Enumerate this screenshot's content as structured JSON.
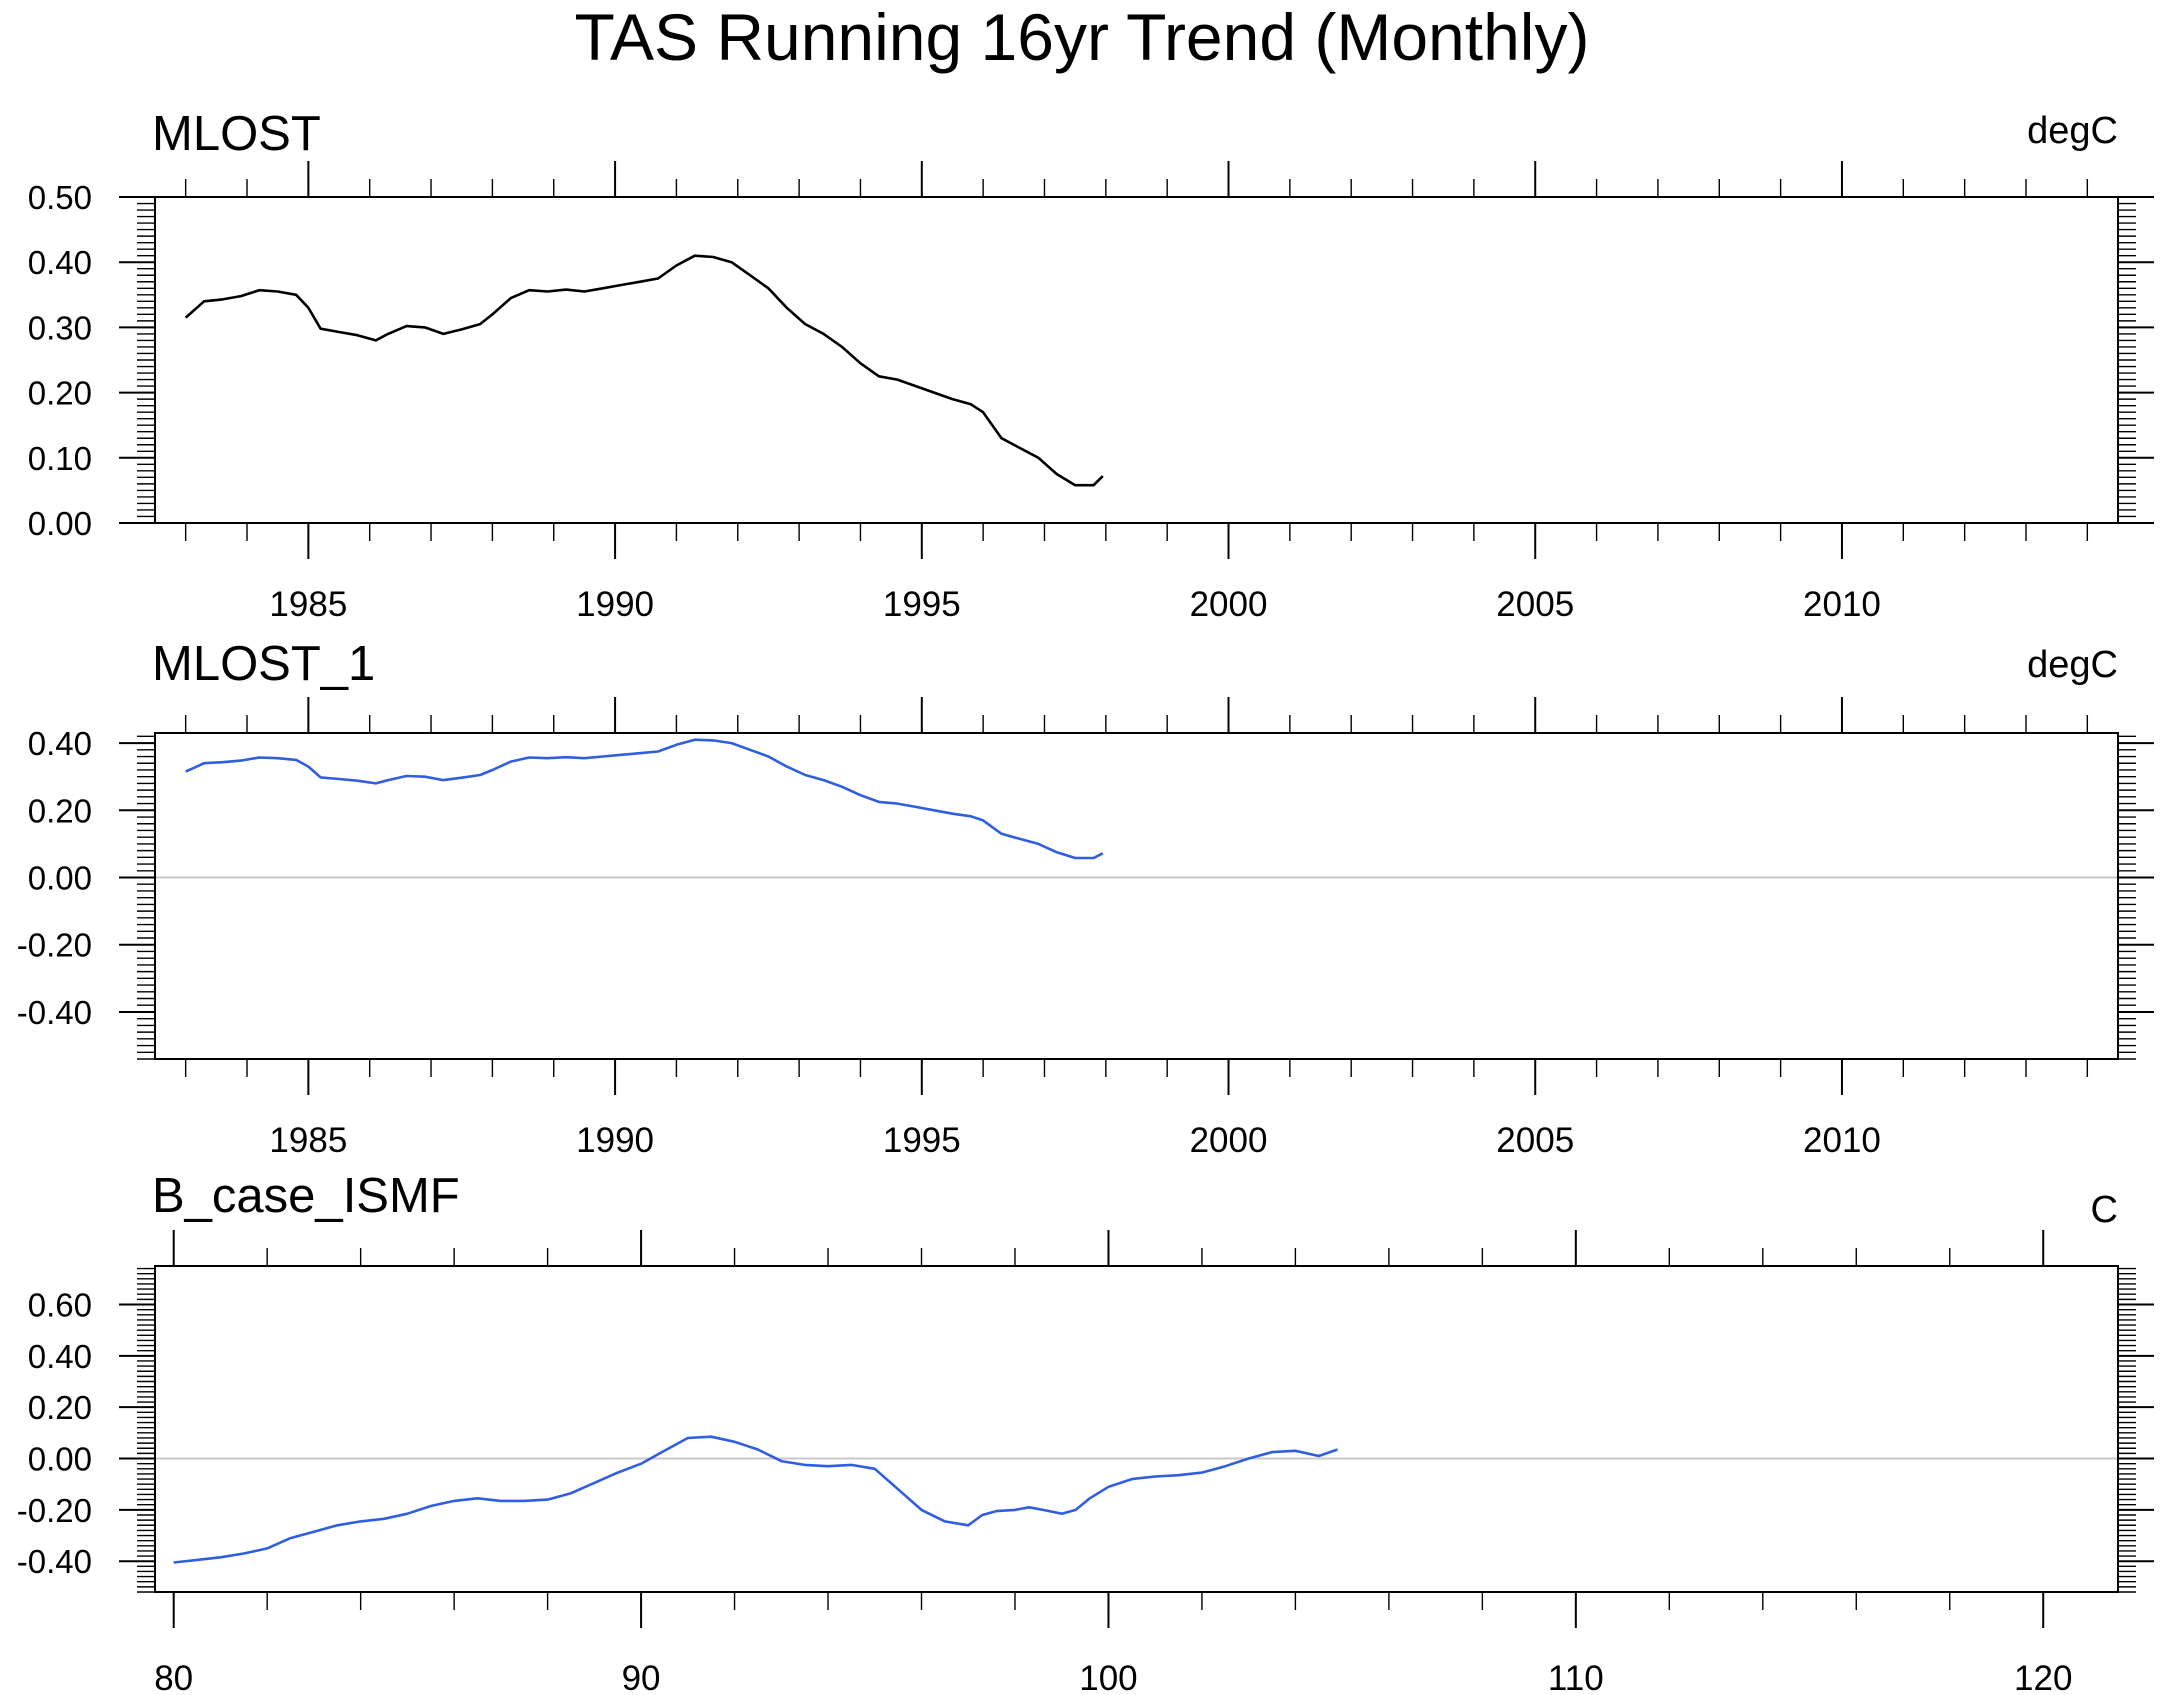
{
  "title": "TAS Running 16yr Trend (Monthly)",
  "colors": {
    "black": "#000000",
    "blue": "#2f5fe0",
    "zero_line": "#c8c8c8"
  },
  "chart_data": [
    {
      "type": "line",
      "title": "MLOST",
      "unit": "degC",
      "xlim": [
        1982.5,
        2014.5
      ],
      "ylim": [
        0.0,
        0.5
      ],
      "xticks": [
        1985,
        1990,
        1995,
        2000,
        2005,
        2010
      ],
      "xtick_labels": [
        "1985",
        "1990",
        "1995",
        "2000",
        "2005",
        "2010"
      ],
      "yticks": [
        0.0,
        0.1,
        0.2,
        0.3,
        0.4,
        0.5
      ],
      "ytick_labels": [
        "0.00",
        "0.10",
        "0.20",
        "0.30",
        "0.40",
        "0.50"
      ],
      "zero_line": false,
      "color": "#000000",
      "series": [
        {
          "x": [
            1983.0,
            1983.3,
            1983.6,
            1983.9,
            1984.2,
            1984.5,
            1984.8,
            1985.0,
            1985.2,
            1985.5,
            1985.8,
            1986.1,
            1986.3,
            1986.6,
            1986.9,
            1987.2,
            1987.5,
            1987.8,
            1988.0,
            1988.3,
            1988.6,
            1988.9,
            1989.2,
            1989.5,
            1989.8,
            1990.1,
            1990.4,
            1990.7,
            1991.0,
            1991.3,
            1991.6,
            1991.9,
            1992.2,
            1992.5,
            1992.8,
            1993.1,
            1993.4,
            1993.7,
            1994.0,
            1994.3,
            1994.6,
            1994.9,
            1995.2,
            1995.5,
            1995.8,
            1996.0,
            1996.3,
            1996.6,
            1996.9,
            1997.2,
            1997.5,
            1997.8,
            1997.95
          ],
          "y": [
            0.315,
            0.34,
            0.343,
            0.348,
            0.357,
            0.355,
            0.35,
            0.33,
            0.298,
            0.293,
            0.288,
            0.28,
            0.29,
            0.302,
            0.3,
            0.29,
            0.297,
            0.305,
            0.32,
            0.345,
            0.357,
            0.355,
            0.358,
            0.355,
            0.36,
            0.365,
            0.37,
            0.375,
            0.395,
            0.41,
            0.408,
            0.4,
            0.38,
            0.36,
            0.33,
            0.305,
            0.29,
            0.27,
            0.245,
            0.225,
            0.22,
            0.21,
            0.2,
            0.19,
            0.182,
            0.17,
            0.13,
            0.115,
            0.1,
            0.075,
            0.058,
            0.058,
            0.072
          ]
        }
      ]
    },
    {
      "type": "line",
      "title": "MLOST_1",
      "unit": "degC",
      "xlim": [
        1982.5,
        2014.5
      ],
      "ylim": [
        -0.54,
        0.43
      ],
      "xticks": [
        1985,
        1990,
        1995,
        2000,
        2005,
        2010
      ],
      "xtick_labels": [
        "1985",
        "1990",
        "1995",
        "2000",
        "2005",
        "2010"
      ],
      "yticks": [
        -0.4,
        -0.2,
        0.0,
        0.2,
        0.4
      ],
      "ytick_labels": [
        "-0.40",
        "-0.20",
        "0.00",
        "0.20",
        "0.40"
      ],
      "zero_line": true,
      "color": "#2f5fe0",
      "series": [
        {
          "x": [
            1983.0,
            1983.3,
            1983.6,
            1983.9,
            1984.2,
            1984.5,
            1984.8,
            1985.0,
            1985.2,
            1985.5,
            1985.8,
            1986.1,
            1986.3,
            1986.6,
            1986.9,
            1987.2,
            1987.5,
            1987.8,
            1988.0,
            1988.3,
            1988.6,
            1988.9,
            1989.2,
            1989.5,
            1989.8,
            1990.1,
            1990.4,
            1990.7,
            1991.0,
            1991.3,
            1991.6,
            1991.9,
            1992.2,
            1992.5,
            1992.8,
            1993.1,
            1993.4,
            1993.7,
            1994.0,
            1994.3,
            1994.6,
            1994.9,
            1995.2,
            1995.5,
            1995.8,
            1996.0,
            1996.3,
            1996.6,
            1996.9,
            1997.2,
            1997.5,
            1997.8,
            1997.95
          ],
          "y": [
            0.315,
            0.34,
            0.343,
            0.348,
            0.357,
            0.355,
            0.35,
            0.33,
            0.298,
            0.293,
            0.288,
            0.28,
            0.29,
            0.302,
            0.3,
            0.29,
            0.297,
            0.305,
            0.32,
            0.345,
            0.357,
            0.355,
            0.358,
            0.355,
            0.36,
            0.365,
            0.37,
            0.375,
            0.395,
            0.41,
            0.408,
            0.4,
            0.38,
            0.36,
            0.33,
            0.305,
            0.29,
            0.27,
            0.245,
            0.225,
            0.22,
            0.21,
            0.2,
            0.19,
            0.182,
            0.17,
            0.13,
            0.115,
            0.1,
            0.075,
            0.058,
            0.058,
            0.072
          ]
        }
      ]
    },
    {
      "type": "line",
      "title": "B_case_ISMF",
      "unit": "C",
      "xlim": [
        79.6,
        121.6
      ],
      "ylim": [
        -0.52,
        0.75
      ],
      "xticks": [
        80,
        90,
        100,
        110,
        120
      ],
      "xtick_labels": [
        "80",
        "90",
        "100",
        "110",
        "120"
      ],
      "yticks": [
        -0.4,
        -0.2,
        0.0,
        0.2,
        0.4,
        0.6
      ],
      "ytick_labels": [
        "-0.40",
        "-0.20",
        "0.00",
        "0.20",
        "0.40",
        "0.60"
      ],
      "zero_line": true,
      "color": "#2f5fe0",
      "series": [
        {
          "x": [
            80.0,
            80.5,
            81.0,
            81.5,
            82.0,
            82.5,
            83.0,
            83.5,
            84.0,
            84.5,
            85.0,
            85.5,
            86.0,
            86.5,
            87.0,
            87.5,
            88.0,
            88.5,
            89.0,
            89.5,
            90.0,
            90.5,
            91.0,
            91.5,
            92.0,
            92.5,
            93.0,
            93.5,
            94.0,
            94.5,
            95.0,
            95.5,
            96.0,
            96.5,
            97.0,
            97.3,
            97.6,
            98.0,
            98.3,
            98.6,
            99.0,
            99.3,
            99.6,
            100.0,
            100.5,
            101.0,
            101.5,
            102.0,
            102.5,
            103.0,
            103.5,
            104.0,
            104.5,
            104.9
          ],
          "y": [
            -0.405,
            -0.395,
            -0.385,
            -0.37,
            -0.35,
            -0.31,
            -0.285,
            -0.26,
            -0.245,
            -0.235,
            -0.215,
            -0.185,
            -0.165,
            -0.155,
            -0.165,
            -0.165,
            -0.16,
            -0.135,
            -0.095,
            -0.055,
            -0.02,
            0.03,
            0.08,
            0.085,
            0.065,
            0.035,
            -0.01,
            -0.025,
            -0.03,
            -0.025,
            -0.04,
            -0.12,
            -0.2,
            -0.245,
            -0.26,
            -0.22,
            -0.205,
            -0.2,
            -0.19,
            -0.2,
            -0.215,
            -0.2,
            -0.155,
            -0.11,
            -0.08,
            -0.07,
            -0.065,
            -0.055,
            -0.03,
            0.0,
            0.025,
            0.03,
            0.01,
            0.035
          ]
        }
      ]
    }
  ]
}
